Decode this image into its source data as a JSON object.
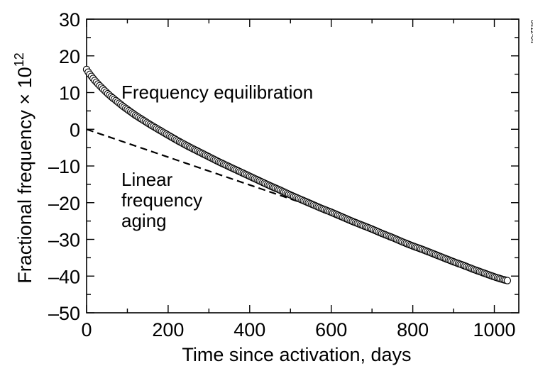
{
  "figure_id": "0412-04",
  "chart_data": {
    "type": "scatter",
    "xlabel": "Time since activation, days",
    "ylabel": "Fractional frequency × 10",
    "ylabel_exponent": "12",
    "xlim": [
      0,
      1060
    ],
    "ylim": [
      -50,
      30
    ],
    "xticks": [
      0,
      200,
      400,
      600,
      800,
      1000
    ],
    "yticks": [
      30,
      20,
      10,
      0,
      -10,
      -20,
      -30,
      -40,
      -50
    ],
    "xtick_labels": [
      "0",
      "200",
      "400",
      "600",
      "800",
      "1000"
    ],
    "ytick_labels": [
      "30",
      "20",
      "10",
      "0",
      "–10",
      "–20",
      "–30",
      "–40",
      "–50"
    ],
    "grid": false,
    "colors": {
      "line": "#000000",
      "marker_fill": "#ffffff",
      "background": "#ffffff"
    },
    "annotations": [
      {
        "text": "Frequency equilibration"
      },
      {
        "lines": [
          "Linear",
          "frequency",
          "aging"
        ]
      }
    ],
    "series": [
      {
        "style": "open-circle markers",
        "x": [
          0,
          5,
          10,
          15,
          20,
          25,
          30,
          40,
          50,
          60,
          70,
          80,
          90,
          100,
          120,
          140,
          160,
          180,
          200,
          225,
          250,
          275,
          300,
          325,
          350,
          375,
          400,
          425,
          450,
          475,
          500,
          525,
          550,
          575,
          600,
          625,
          650,
          675,
          700,
          725,
          750,
          775,
          800,
          825,
          850,
          875,
          900,
          925,
          950,
          975,
          1000,
          1020,
          1035
        ],
        "y": [
          16.3,
          15.4,
          14.7,
          14.0,
          13.3,
          12.7,
          12.1,
          11.0,
          9.9,
          8.9,
          8.0,
          7.1,
          6.2,
          5.4,
          3.8,
          2.4,
          1.0,
          -0.3,
          -1.6,
          -3.2,
          -4.7,
          -6.1,
          -7.5,
          -8.9,
          -10.2,
          -11.5,
          -12.8,
          -14.1,
          -15.4,
          -16.6,
          -17.9,
          -19.1,
          -20.3,
          -21.5,
          -22.6,
          -23.8,
          -25.0,
          -26.1,
          -27.2,
          -28.4,
          -29.5,
          -30.7,
          -31.8,
          -32.8,
          -33.9,
          -35.0,
          -36.1,
          -37.1,
          -38.2,
          -39.2,
          -40.2,
          -40.9,
          -41.3
        ]
      },
      {
        "style": "dashed line",
        "x": [
          0,
          580
        ],
        "y": [
          0,
          -22
        ]
      }
    ]
  }
}
